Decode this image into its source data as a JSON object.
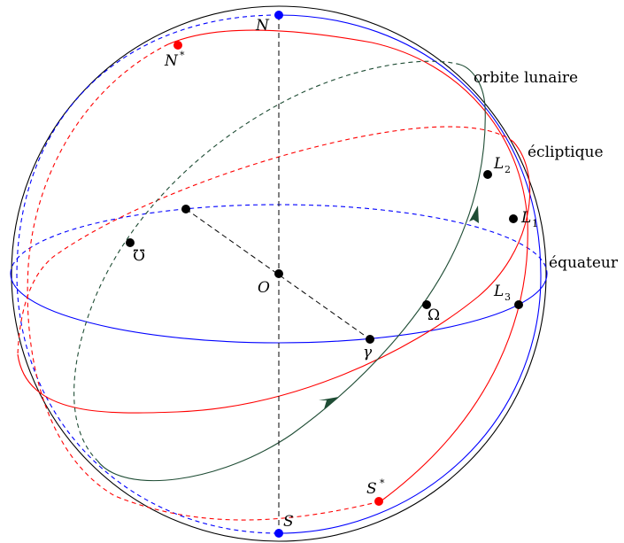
{
  "colors": {
    "outline": "#000000",
    "equator": "#0000ff",
    "ecliptic": "#ff0000",
    "lunar_orbit": "#1f4d35",
    "axis": "#000000",
    "pole_north_south": "#0000ff",
    "ecliptic_pole": "#ff0000"
  },
  "labels": {
    "north": "N",
    "south": "S",
    "north_ecliptic": "N",
    "north_ecliptic_sup": "*",
    "south_ecliptic": "S",
    "south_ecliptic_sup": "*",
    "center": "O",
    "vernal_point": "γ",
    "ascending_node": "Ω",
    "descending_node": "℧",
    "l1": "L",
    "l1_sub": "1",
    "l2": "L",
    "l2_sub": "2",
    "l3": "L",
    "l3_sub": "3",
    "lunar_orbit": "orbite lunaire",
    "ecliptic": "écliptique",
    "equator": "équateur"
  }
}
